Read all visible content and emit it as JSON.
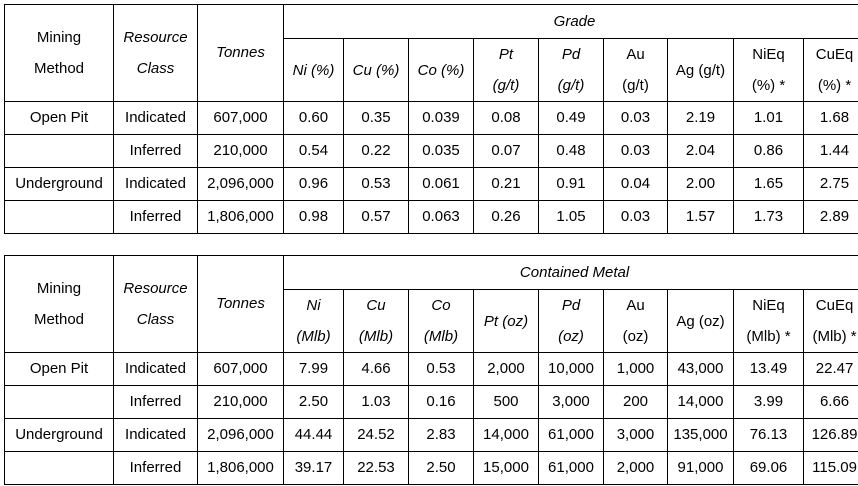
{
  "table1": {
    "group_label": "Grade",
    "headers": {
      "mining_method": [
        "Mining",
        "Method"
      ],
      "resource_class": [
        "Resource",
        "Class"
      ],
      "tonnes": "Tonnes"
    },
    "columns": [
      {
        "l1": "Ni (%)",
        "l2": "",
        "italic": true
      },
      {
        "l1": "Cu (%)",
        "l2": "",
        "italic": true
      },
      {
        "l1": "Co (%)",
        "l2": "",
        "italic": true
      },
      {
        "l1": "Pt",
        "l2": "(g/t)",
        "italic": true
      },
      {
        "l1": "Pd",
        "l2": "(g/t)",
        "italic": true
      },
      {
        "l1": "Au",
        "l2": "(g/t)",
        "italic": false
      },
      {
        "l1": "Ag (g/t)",
        "l2": "",
        "italic": false
      },
      {
        "l1": "NiEq",
        "l2": "(%) *",
        "italic": false
      },
      {
        "l1": "CuEq",
        "l2": "(%) *",
        "italic": false
      }
    ],
    "rows": [
      {
        "method": "Open Pit",
        "class": "Indicated",
        "tonnes": "607,000",
        "values": [
          "0.60",
          "0.35",
          "0.039",
          "0.08",
          "0.49",
          "0.03",
          "2.19",
          "1.01",
          "1.68"
        ]
      },
      {
        "method": "",
        "class": "Inferred",
        "tonnes": "210,000",
        "values": [
          "0.54",
          "0.22",
          "0.035",
          "0.07",
          "0.48",
          "0.03",
          "2.04",
          "0.86",
          "1.44"
        ]
      },
      {
        "method": "Underground",
        "class": "Indicated",
        "tonnes": "2,096,000",
        "values": [
          "0.96",
          "0.53",
          "0.061",
          "0.21",
          "0.91",
          "0.04",
          "2.00",
          "1.65",
          "2.75"
        ]
      },
      {
        "method": "",
        "class": "Inferred",
        "tonnes": "1,806,000",
        "values": [
          "0.98",
          "0.57",
          "0.063",
          "0.26",
          "1.05",
          "0.03",
          "1.57",
          "1.73",
          "2.89"
        ]
      }
    ]
  },
  "table2": {
    "group_label": "Contained Metal",
    "headers": {
      "mining_method": [
        "Mining",
        "Method"
      ],
      "resource_class": [
        "Resource",
        "Class"
      ],
      "tonnes": "Tonnes"
    },
    "columns": [
      {
        "l1": "Ni",
        "l2": "(Mlb)",
        "italic": true
      },
      {
        "l1": "Cu",
        "l2": "(Mlb)",
        "italic": true
      },
      {
        "l1": "Co",
        "l2": "(Mlb)",
        "italic": true
      },
      {
        "l1": "Pt (oz)",
        "l2": "",
        "italic": true
      },
      {
        "l1": "Pd",
        "l2": "(oz)",
        "italic": true
      },
      {
        "l1": "Au",
        "l2": "(oz)",
        "italic": false
      },
      {
        "l1": "Ag (oz)",
        "l2": "",
        "italic": false
      },
      {
        "l1": "NiEq",
        "l2": "(Mlb) *",
        "italic": false
      },
      {
        "l1": "CuEq",
        "l2": "(Mlb) *",
        "italic": false
      }
    ],
    "rows": [
      {
        "method": "Open Pit",
        "class": "Indicated",
        "tonnes": "607,000",
        "values": [
          "7.99",
          "4.66",
          "0.53",
          "2,000",
          "10,000",
          "1,000",
          "43,000",
          "13.49",
          "22.47"
        ]
      },
      {
        "method": "",
        "class": "Inferred",
        "tonnes": "210,000",
        "values": [
          "2.50",
          "1.03",
          "0.16",
          "500",
          "3,000",
          "200",
          "14,000",
          "3.99",
          "6.66"
        ]
      },
      {
        "method": "Underground",
        "class": "Indicated",
        "tonnes": "2,096,000",
        "values": [
          "44.44",
          "24.52",
          "2.83",
          "14,000",
          "61,000",
          "3,000",
          "135,000",
          "76.13",
          "126.89"
        ]
      },
      {
        "method": "",
        "class": "Inferred",
        "tonnes": "1,806,000",
        "values": [
          "39.17",
          "22.53",
          "2.50",
          "15,000",
          "61,000",
          "2,000",
          "91,000",
          "69.06",
          "115.09"
        ]
      }
    ]
  }
}
